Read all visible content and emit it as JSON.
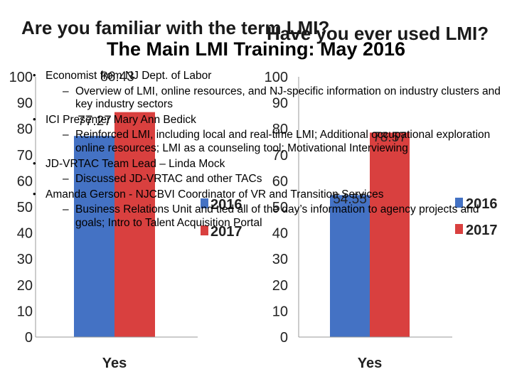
{
  "slide": {
    "title": "The Main LMI Training: May 2016",
    "bullets": [
      {
        "text": "Economist from NJ Dept. of Labor",
        "sub": "Overview of LMI, online resources, and NJ-specific information on industry clusters and key industry sectors"
      },
      {
        "text": "ICI Presenter Mary Ann Bedick",
        "sub": "Reinforced LMI, including local and real-time LMI; Additional occupational exploration online resources; LMI as a counseling tool; Motivational Interviewing"
      },
      {
        "text": "JD-VRTAC Team Lead – Linda Mock",
        "sub": "Discussed JD-VRTAC and other TACs"
      },
      {
        "text": "Amanda Gerson - NJCBVI Coordinator of VR and Transition Services",
        "sub": "Business Relations Unit and tied all of the day’s information to agency projects and goals; Intro to Talent Acquisition Portal"
      }
    ],
    "dash": "–"
  },
  "chart_data": [
    {
      "type": "bar",
      "title": "Are you familiar with the term LMI?",
      "categories": [
        "Yes"
      ],
      "series": [
        {
          "name": "2016",
          "values": [
            77.27
          ],
          "color": "#4472c4"
        },
        {
          "name": "2017",
          "values": [
            86.43
          ],
          "color": "#d9403f"
        }
      ],
      "ylim": [
        0,
        100
      ],
      "yticks": [
        0,
        10,
        20,
        30,
        40,
        50,
        60,
        70,
        80,
        90,
        100
      ],
      "grid": false,
      "legend": "center"
    },
    {
      "type": "bar",
      "title": "Have you ever used LMI?",
      "categories": [
        "Yes"
      ],
      "series": [
        {
          "name": "2016",
          "values": [
            54.55
          ],
          "color": "#4472c4"
        },
        {
          "name": "2017",
          "values": [
            78.57
          ],
          "color": "#d9403f"
        }
      ],
      "ylim": [
        0,
        100
      ],
      "yticks": [
        0,
        10,
        20,
        30,
        40,
        50,
        60,
        70,
        80,
        90,
        100
      ],
      "grid": false,
      "legend": "right"
    }
  ]
}
